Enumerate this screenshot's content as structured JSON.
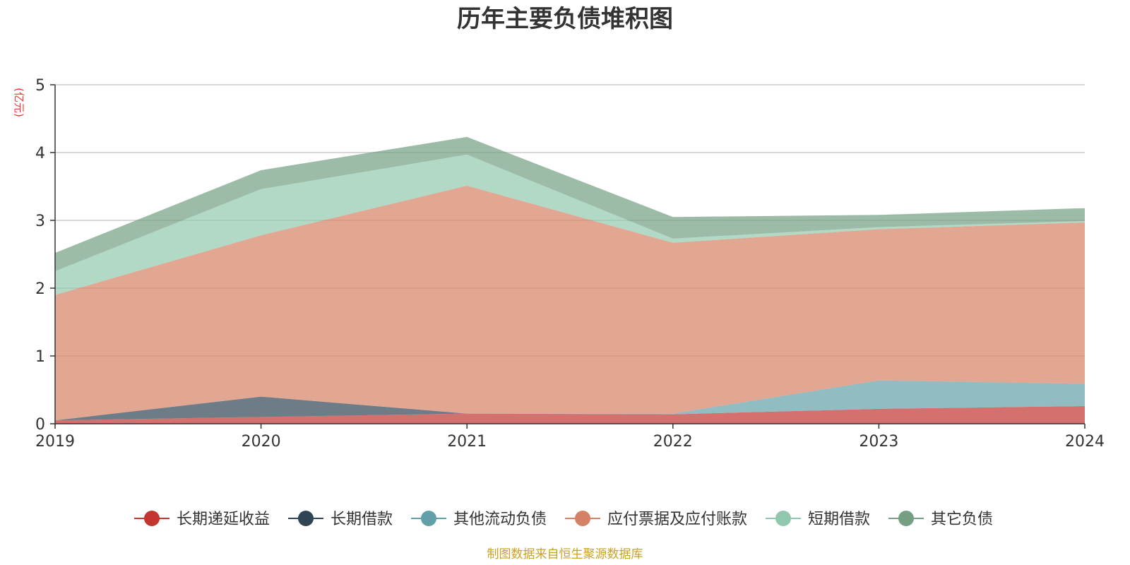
{
  "chart_data": {
    "type": "area",
    "stacked": true,
    "title": "历年主要负债堆积图",
    "ylabel": "(亿元)",
    "xlabel": "",
    "x": [
      "2019",
      "2020",
      "2021",
      "2022",
      "2023",
      "2024"
    ],
    "ylim": [
      0,
      5
    ],
    "yticks": [
      "0",
      "1",
      "2",
      "3",
      "4",
      "5"
    ],
    "grid": true,
    "legend_position": "bottom",
    "series": [
      {
        "name": "长期递延收益",
        "color": "#c23531",
        "values": [
          0.05,
          0.1,
          0.15,
          0.14,
          0.22,
          0.26
        ]
      },
      {
        "name": "长期借款",
        "color": "#2f4554",
        "values": [
          0.0,
          0.3,
          0.0,
          0.0,
          0.0,
          0.0
        ]
      },
      {
        "name": "其他流动负债",
        "color": "#61a0a8",
        "values": [
          0.0,
          0.0,
          0.0,
          0.01,
          0.42,
          0.33
        ]
      },
      {
        "name": "应付票据及应付账款",
        "color": "#d48265",
        "values": [
          1.85,
          2.38,
          3.36,
          2.52,
          2.23,
          2.38
        ]
      },
      {
        "name": "短期借款",
        "color": "#91c7ae",
        "values": [
          0.35,
          0.68,
          0.46,
          0.06,
          0.03,
          0.02
        ]
      },
      {
        "name": "其它负债",
        "color": "#749f83",
        "values": [
          0.27,
          0.28,
          0.26,
          0.32,
          0.18,
          0.19
        ]
      }
    ],
    "source": "制图数据来自恒生聚源数据库"
  }
}
